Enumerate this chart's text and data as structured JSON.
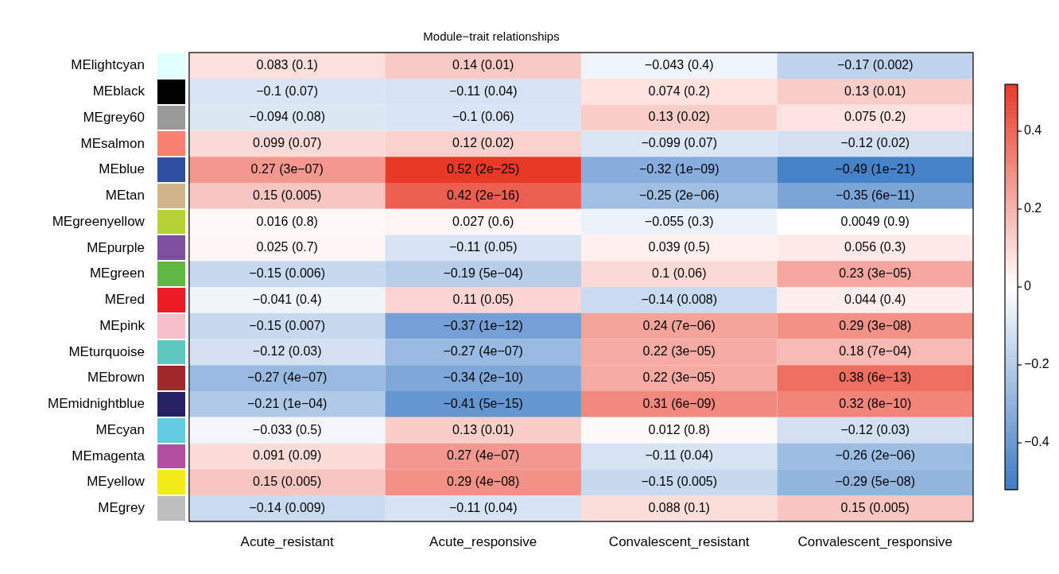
{
  "chart_data": {
    "type": "heatmap",
    "title": "Module−trait relationships",
    "categories": [
      "Acute_resistant",
      "Acute_responsive",
      "Convalescent_resistant",
      "Convalescent_responsive"
    ],
    "y_categories": [
      "MElightcyan",
      "MEblack",
      "MEgrey60",
      "MEsalmon",
      "MEblue",
      "MEtan",
      "MEgreenyellow",
      "MEpurple",
      "MEgreen",
      "MEred",
      "MEpink",
      "MEturquoise",
      "MEbrown",
      "MEmidnightblue",
      "MEcyan",
      "MEmagenta",
      "MEyellow",
      "MEgrey"
    ],
    "colors": [
      "#e0ffff",
      "#000000",
      "#999999",
      "#fa8072",
      "#2f4ea0",
      "#d2b48c",
      "#b5d334",
      "#7e4ea0",
      "#5fb842",
      "#ec1c24",
      "#f7bfcb",
      "#5ec8c0",
      "#a0282a",
      "#262262",
      "#63cbe0",
      "#b34fa0",
      "#f3ec1a",
      "#bebebe"
    ],
    "cells": [
      [
        0.083,
        0.14,
        -0.043,
        -0.17
      ],
      [
        -0.1,
        -0.11,
        0.074,
        0.13
      ],
      [
        -0.094,
        -0.1,
        0.13,
        0.075
      ],
      [
        0.099,
        0.12,
        -0.099,
        -0.12
      ],
      [
        0.27,
        0.52,
        -0.32,
        -0.49
      ],
      [
        0.15,
        0.42,
        -0.25,
        -0.35
      ],
      [
        0.016,
        0.027,
        -0.055,
        0.0049
      ],
      [
        0.025,
        -0.11,
        0.039,
        0.056
      ],
      [
        -0.15,
        -0.19,
        0.1,
        0.23
      ],
      [
        -0.041,
        0.11,
        -0.14,
        0.044
      ],
      [
        -0.15,
        -0.37,
        0.24,
        0.29
      ],
      [
        -0.12,
        -0.27,
        0.22,
        0.18
      ],
      [
        -0.27,
        -0.34,
        0.22,
        0.38
      ],
      [
        -0.21,
        -0.41,
        0.31,
        0.32
      ],
      [
        -0.033,
        0.13,
        0.012,
        -0.12
      ],
      [
        0.091,
        0.27,
        -0.11,
        -0.26
      ],
      [
        0.15,
        0.29,
        -0.15,
        -0.29
      ],
      [
        -0.14,
        -0.11,
        0.088,
        0.15
      ]
    ],
    "cell_labels": [
      [
        "0.083 (0.1)",
        "0.14 (0.01)",
        "−0.043 (0.4)",
        "−0.17 (0.002)"
      ],
      [
        "−0.1 (0.07)",
        "−0.11 (0.04)",
        "0.074 (0.2)",
        "0.13 (0.01)"
      ],
      [
        "−0.094 (0.08)",
        "−0.1 (0.06)",
        "0.13 (0.02)",
        "0.075 (0.2)"
      ],
      [
        "0.099 (0.07)",
        "0.12 (0.02)",
        "−0.099 (0.07)",
        "−0.12 (0.02)"
      ],
      [
        "0.27 (3e−07)",
        "0.52 (2e−25)",
        "−0.32 (1e−09)",
        "−0.49 (1e−21)"
      ],
      [
        "0.15 (0.005)",
        "0.42 (2e−16)",
        "−0.25 (2e−06)",
        "−0.35 (6e−11)"
      ],
      [
        "0.016 (0.8)",
        "0.027 (0.6)",
        "−0.055 (0.3)",
        "0.0049 (0.9)"
      ],
      [
        "0.025 (0.7)",
        "−0.11 (0.05)",
        "0.039 (0.5)",
        "0.056 (0.3)"
      ],
      [
        "−0.15 (0.006)",
        "−0.19 (5e−04)",
        "0.1 (0.06)",
        "0.23 (3e−05)"
      ],
      [
        "−0.041 (0.4)",
        "0.11 (0.05)",
        "−0.14 (0.008)",
        "0.044 (0.4)"
      ],
      [
        "−0.15 (0.007)",
        "−0.37 (1e−12)",
        "0.24 (7e−06)",
        "0.29 (3e−08)"
      ],
      [
        "−0.12 (0.03)",
        "−0.27 (4e−07)",
        "0.22 (3e−05)",
        "0.18 (7e−04)"
      ],
      [
        "−0.27 (4e−07)",
        "−0.34 (2e−10)",
        "0.22 (3e−05)",
        "0.38 (6e−13)"
      ],
      [
        "−0.21 (1e−04)",
        "−0.41 (5e−15)",
        "0.31 (6e−09)",
        "0.32 (8e−10)"
      ],
      [
        "−0.033 (0.5)",
        "0.13 (0.01)",
        "0.012 (0.8)",
        "−0.12 (0.03)"
      ],
      [
        "0.091 (0.09)",
        "0.27 (4e−07)",
        "−0.11 (0.04)",
        "−0.26 (2e−06)"
      ],
      [
        "0.15 (0.005)",
        "0.29 (4e−08)",
        "−0.15 (0.005)",
        "−0.29 (5e−08)"
      ],
      [
        "−0.14 (0.009)",
        "−0.11 (0.04)",
        "0.088 (0.1)",
        "0.15 (0.005)"
      ]
    ],
    "clim": [
      -0.52,
      0.52
    ],
    "cticks": [
      {
        "value": -0.4,
        "label": "−0.4"
      },
      {
        "value": -0.2,
        "label": "−0.2"
      },
      0,
      {
        "value": 0.2,
        "label": "0.2"
      },
      {
        "value": 0.4,
        "label": "0.4"
      }
    ]
  }
}
